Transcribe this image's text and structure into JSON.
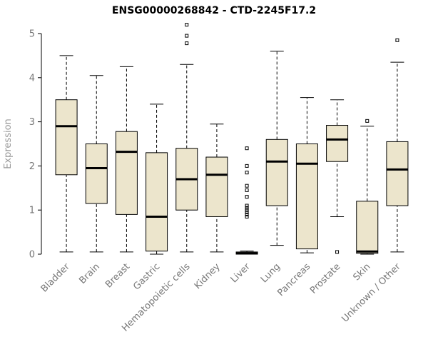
{
  "title": "ENSG00000268842 - CTD-2245F17.2",
  "colors": {
    "background": "#ffffff",
    "box_fill": "#ece5cc",
    "line": "#000000",
    "tick_label": "#777777",
    "axis_title": "#999999",
    "title_text": "#000000"
  },
  "chart_data": {
    "type": "boxplot",
    "title": "ENSG00000268842 - CTD-2245F17.2",
    "xlabel": "",
    "ylabel": "Expression",
    "ylim": [
      0,
      5
    ],
    "yticks": [
      0,
      1,
      2,
      3,
      4,
      5
    ],
    "grid": false,
    "legend": false,
    "categories": [
      "Bladder",
      "Brain",
      "Breast",
      "Gastric",
      "Hematopoietic cells",
      "Kidney",
      "Liver",
      "Lung",
      "Pancreas",
      "Prostate",
      "Skin",
      "Unknown / Other"
    ],
    "boxes": [
      {
        "category": "Bladder",
        "whisker_low": 0.05,
        "q1": 1.8,
        "median": 2.9,
        "q3": 3.5,
        "whisker_high": 4.5,
        "outliers": []
      },
      {
        "category": "Brain",
        "whisker_low": 0.05,
        "q1": 1.15,
        "median": 1.95,
        "q3": 2.5,
        "whisker_high": 4.05,
        "outliers": []
      },
      {
        "category": "Breast",
        "whisker_low": 0.05,
        "q1": 0.9,
        "median": 2.32,
        "q3": 2.78,
        "whisker_high": 4.25,
        "outliers": []
      },
      {
        "category": "Gastric",
        "whisker_low": 0.0,
        "q1": 0.07,
        "median": 0.85,
        "q3": 2.3,
        "whisker_high": 3.4,
        "outliers": []
      },
      {
        "category": "Hematopoietic cells",
        "whisker_low": 0.05,
        "q1": 1.0,
        "median": 1.7,
        "q3": 2.4,
        "whisker_high": 4.3,
        "outliers": [
          4.78,
          4.95,
          5.2
        ]
      },
      {
        "category": "Kidney",
        "whisker_low": 0.05,
        "q1": 0.85,
        "median": 1.8,
        "q3": 2.2,
        "whisker_high": 2.95,
        "outliers": []
      },
      {
        "category": "Liver",
        "whisker_low": 0.0,
        "q1": 0.0,
        "median": 0.02,
        "q3": 0.05,
        "whisker_high": 0.07,
        "outliers": [
          0.85,
          0.9,
          0.95,
          1.0,
          1.05,
          1.1,
          1.3,
          1.45,
          1.55,
          1.85,
          2.0,
          2.4
        ]
      },
      {
        "category": "Lung",
        "whisker_low": 0.2,
        "q1": 1.1,
        "median": 2.1,
        "q3": 2.6,
        "whisker_high": 4.6,
        "outliers": []
      },
      {
        "category": "Pancreas",
        "whisker_low": 0.03,
        "q1": 0.12,
        "median": 2.05,
        "q3": 2.5,
        "whisker_high": 3.55,
        "outliers": []
      },
      {
        "category": "Prostate",
        "whisker_low": 0.85,
        "q1": 2.1,
        "median": 2.6,
        "q3": 2.92,
        "whisker_high": 3.5,
        "outliers": [
          0.05
        ]
      },
      {
        "category": "Skin",
        "whisker_low": 0.0,
        "q1": 0.02,
        "median": 0.06,
        "q3": 1.2,
        "whisker_high": 2.9,
        "outliers": [
          3.02
        ]
      },
      {
        "category": "Unknown / Other",
        "whisker_low": 0.05,
        "q1": 1.1,
        "median": 1.92,
        "q3": 2.55,
        "whisker_high": 4.35,
        "outliers": [
          4.85
        ]
      }
    ]
  }
}
